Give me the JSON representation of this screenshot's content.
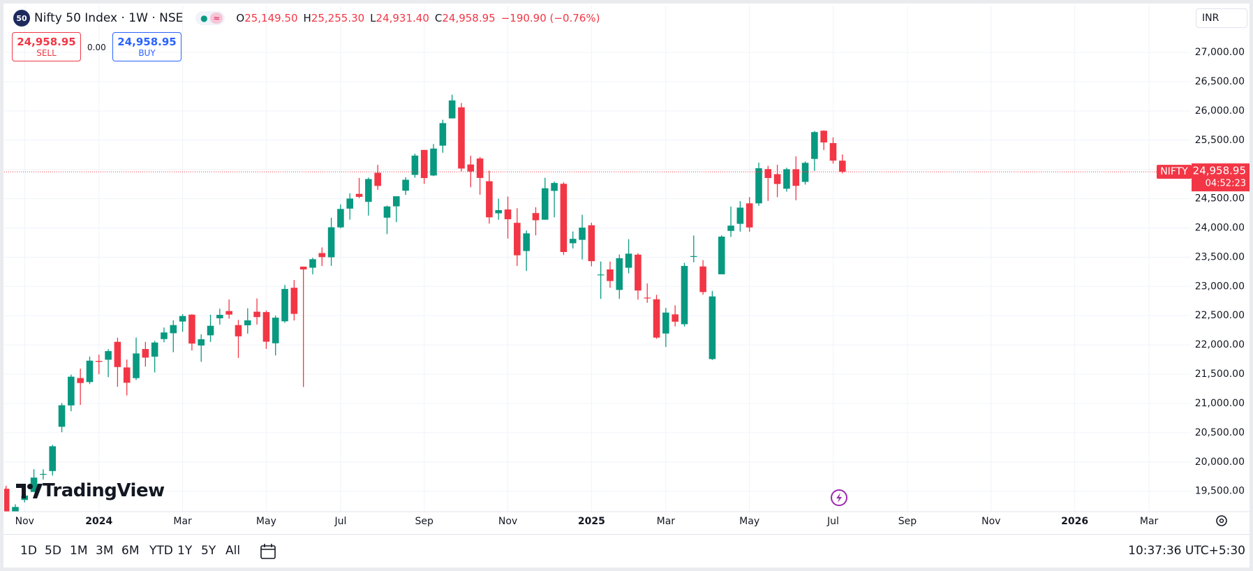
{
  "header": {
    "badge": "50",
    "title": "Nifty 50 Index · 1W · NSE",
    "ohlc": [
      {
        "key": "O",
        "text": "25,149.50"
      },
      {
        "key": "H",
        "text": "25,255.30"
      },
      {
        "key": "L",
        "text": "24,931.40"
      },
      {
        "key": "C",
        "text": "24,958.95"
      }
    ],
    "change": "−190.90 (−0.76%)"
  },
  "trade": {
    "sell_price": "24,958.95",
    "sell": "SELL",
    "spread": "0.00",
    "buy_price": "24,958.95",
    "buy": "BUY"
  },
  "currency": "INR",
  "logo": "TradingView",
  "toolbar": {
    "ranges": [
      "1D",
      "5D",
      "1M",
      "3M",
      "6M",
      "YTD",
      "1Y",
      "5Y",
      "All"
    ],
    "time": "10:37:36 UTC+5:30"
  },
  "chart_data": {
    "type": "candlestick",
    "up_color": "#089981",
    "down_color": "#f23645",
    "grid": true,
    "open": [
      19542,
      19140,
      19350,
      19487,
      19793,
      19844,
      20601,
      20966,
      21434,
      21365,
      21727,
      21747,
      22053,
      21615,
      21432,
      21930,
      21800,
      22100,
      22200,
      22400,
      22517,
      21990,
      22164,
      22455,
      22579,
      22339,
      22336,
      22568,
      22561,
      22028,
      22404,
      22977,
      23338,
      23320,
      23570,
      23498,
      24010,
      24330,
      24582,
      24445,
      24943,
      24175,
      24369,
      24636,
      24907,
      25333,
      24896,
      25406,
      25872,
      26061,
      25084,
      25186,
      24798,
      24250,
      24315,
      24087,
      23605,
      24254,
      24140,
      24633,
      24754,
      23738,
      23796,
      24045,
      23195,
      23290,
      22940,
      23319,
      23543,
      22809,
      22780,
      22195,
      22522,
      22354,
      23515,
      23341,
      21758,
      23207,
      23949,
      24070,
      24420,
      24420,
      25005,
      24919,
      24670,
      25003,
      24787,
      25179,
      25661,
      25450,
      25149.5
    ],
    "high": [
      19593,
      19276,
      19463,
      19875,
      19875,
      20292,
      21006,
      21493,
      21594,
      21801,
      21834,
      21928,
      22124,
      21750,
      22126,
      22053,
      22069,
      22297,
      22420,
      22526,
      22526,
      22180,
      22516,
      22619,
      22776,
      22427,
      22626,
      22795,
      22588,
      22502,
      23026,
      23110,
      23339,
      23490,
      23667,
      24174,
      24401,
      24592,
      24854,
      24861,
      25078,
      24382,
      24473,
      24867,
      25269,
      25333,
      25434,
      25849,
      26277,
      26135,
      25234,
      25212,
      24978,
      24499,
      24537,
      24336,
      23956,
      24354,
      24857,
      24792,
      24781,
      23939,
      24226,
      24089,
      23426,
      23426,
      23546,
      23807,
      23569,
      23050,
      22857,
      22634,
      22677,
      23403,
      23870,
      23450,
      22923,
      23873,
      24365,
      24457,
      24526,
      25116,
      25062,
      25080,
      25029,
      25223,
      25137,
      25654,
      25669,
      25548,
      25255.3
    ],
    "low": [
      18837,
      18973,
      19309,
      19487,
      19700,
      19768,
      20508,
      20867,
      20976,
      21330,
      21500,
      21449,
      21285,
      21137,
      21400,
      21629,
      21530,
      22045,
      21875,
      22224,
      21905,
      21711,
      22052,
      22346,
      22449,
      21777,
      22192,
      22348,
      21932,
      21821,
      22378,
      22417,
      21281,
      23207,
      23350,
      23351,
      23993,
      24141,
      24508,
      24211,
      24651,
      23894,
      24099,
      24563,
      24858,
      24753,
      24885,
      25285,
      25871,
      24966,
      24694,
      24567,
      24073,
      24140,
      23817,
      23350,
      23263,
      23873,
      24140,
      24180,
      23537,
      23649,
      23460,
      23344,
      22787,
      22976,
      22787,
      23223,
      22775,
      22720,
      22105,
      21965,
      22315,
      22314,
      23412,
      22858,
      21743,
      23207,
      23847,
      23938,
      23935,
      24378,
      24462,
      24526,
      24620,
      24473,
      24740,
      24975,
      25331,
      25100,
      24931.4
    ],
    "close": [
      19047,
      19230,
      19425,
      19732,
      19795,
      20268,
      20969,
      21457,
      21349,
      21731,
      21711,
      21894,
      21622,
      21353,
      21854,
      21783,
      22041,
      22213,
      22339,
      22494,
      22023,
      22097,
      22327,
      22514,
      22519,
      22147,
      22420,
      22476,
      22055,
      22466,
      22957,
      22531,
      23290,
      23465,
      23501,
      24011,
      24324,
      24502,
      24531,
      24835,
      24718,
      24367,
      24541,
      24823,
      25236,
      24852,
      25356,
      25791,
      26179,
      25015,
      24964,
      24854,
      24181,
      24304,
      24148,
      23532,
      23907,
      24131,
      24678,
      24768,
      23588,
      23813,
      24005,
      23432,
      23204,
      23092,
      23482,
      23560,
      22930,
      22796,
      22125,
      22553,
      22397,
      23350,
      23519,
      22904,
      22829,
      23851,
      24039,
      24347,
      24008,
      25020,
      24853,
      24751,
      25003,
      24719,
      25112,
      25638,
      25461,
      25149.85,
      24958.95
    ],
    "xlim": [
      -0.2,
      127.5
    ],
    "xticks": [
      {
        "value": 2,
        "label": "Nov"
      },
      {
        "value": 10,
        "label": "2024"
      },
      {
        "value": 19,
        "label": "Mar"
      },
      {
        "value": 28,
        "label": "May"
      },
      {
        "value": 36,
        "label": "Jul"
      },
      {
        "value": 45,
        "label": "Sep"
      },
      {
        "value": 54,
        "label": "Nov"
      },
      {
        "value": 63,
        "label": "2025"
      },
      {
        "value": 71,
        "label": "Mar"
      },
      {
        "value": 80,
        "label": "May"
      },
      {
        "value": 89,
        "label": "Jul"
      },
      {
        "value": 97,
        "label": "Sep"
      },
      {
        "value": 106,
        "label": "Nov"
      },
      {
        "value": 115,
        "label": "2026"
      },
      {
        "value": 123,
        "label": "Mar"
      }
    ],
    "ylim": [
      19150,
      27800
    ],
    "yticks": [
      {
        "value": 19500,
        "label": "19,500.00"
      },
      {
        "value": 20000,
        "label": "20,000.00"
      },
      {
        "value": 20500,
        "label": "20,500.00"
      },
      {
        "value": 21000,
        "label": "21,000.00"
      },
      {
        "value": 21500,
        "label": "21,500.00"
      },
      {
        "value": 22000,
        "label": "22,000.00"
      },
      {
        "value": 22500,
        "label": "22,500.00"
      },
      {
        "value": 23000,
        "label": "23,000.00"
      },
      {
        "value": 23500,
        "label": "23,500.00"
      },
      {
        "value": 24000,
        "label": "24,000.00"
      },
      {
        "value": 24500,
        "label": "24,500.00"
      },
      {
        "value": 25000,
        "label": "25,000.00"
      },
      {
        "value": 25500,
        "label": "25,500.00"
      },
      {
        "value": 26000,
        "label": "26,000.00"
      },
      {
        "value": 26500,
        "label": "26,500.00"
      },
      {
        "value": 27000,
        "label": "27,000.00"
      }
    ],
    "last_price": {
      "value": 24958.95,
      "label": "24,958.95"
    },
    "symbol_label": "NIFTY",
    "countdown": "04:52:23"
  }
}
